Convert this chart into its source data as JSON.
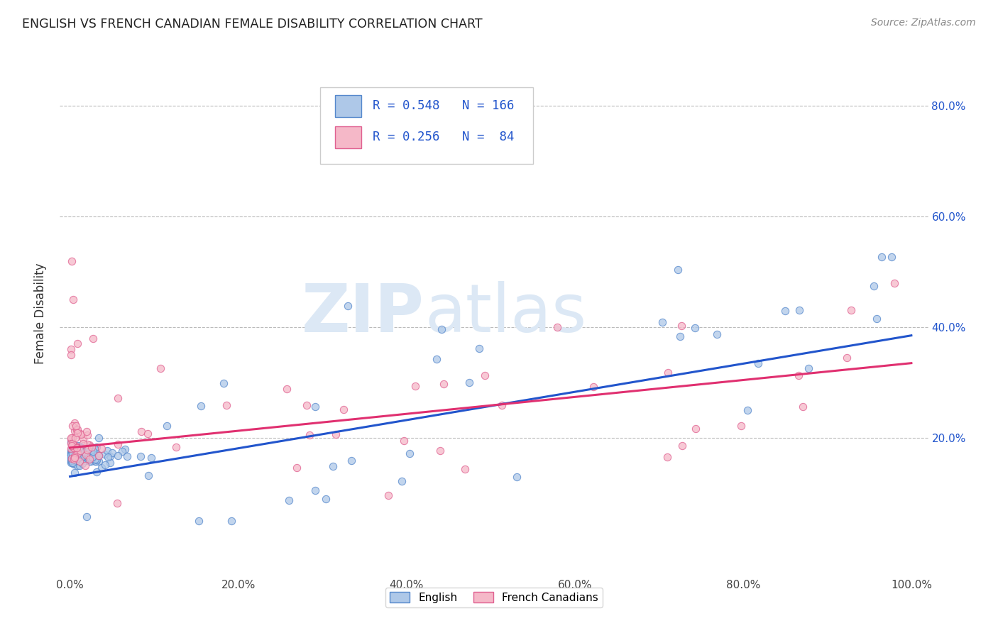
{
  "title": "ENGLISH VS FRENCH CANADIAN FEMALE DISABILITY CORRELATION CHART",
  "source": "Source: ZipAtlas.com",
  "ylabel": "Female Disability",
  "english_R": 0.548,
  "english_N": 166,
  "french_R": 0.256,
  "french_N": 84,
  "english_color": "#aec8e8",
  "french_color": "#f5b8c8",
  "english_edge_color": "#5588cc",
  "french_edge_color": "#e06090",
  "english_line_color": "#2255cc",
  "french_line_color": "#e03070",
  "legend_text_color": "#2255cc",
  "bg_color": "#ffffff",
  "grid_color": "#bbbbbb",
  "title_color": "#222222",
  "source_color": "#888888",
  "watermark": "ZIPAtlas",
  "watermark_color": "#dce8f5",
  "xlim": [
    0.0,
    1.0
  ],
  "ylim": [
    0.0,
    0.9
  ],
  "xtick_pos": [
    0.0,
    0.2,
    0.4,
    0.6,
    0.8,
    1.0
  ],
  "xtick_labels": [
    "0.0%",
    "20.0%",
    "40.0%",
    "60.0%",
    "80.0%",
    "100.0%"
  ],
  "ytick_pos": [
    0.2,
    0.4,
    0.6,
    0.8
  ],
  "ytick_labels": [
    "20.0%",
    "40.0%",
    "60.0%",
    "80.0%"
  ],
  "blue_line_y0": 0.13,
  "blue_line_y1": 0.385,
  "pink_line_y0": 0.182,
  "pink_line_y1": 0.335
}
